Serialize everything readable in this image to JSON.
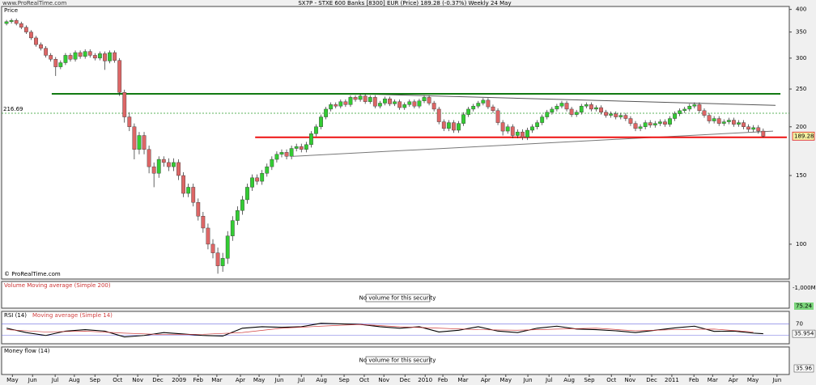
{
  "site": "www.ProRealTime.com",
  "price_label": "Price",
  "copyright": "© ProRealTime.com",
  "volume_panel": {
    "title": "Volume Moving average (Simple 200)",
    "message": "No volume for this security",
    "axis_label": "-1,000M",
    "value_label": "75.24"
  },
  "money_flow_panel": {
    "title": "Money flow (14)",
    "message": "No volume for this security",
    "value_label": "35.96"
  },
  "chart_data": [
    {
      "type": "candlestick",
      "title": "SX7P - STXE 600 Banks [8300] EUR (Price)   189.28 (-0.37%)   Weekly 24 May",
      "x": [
        0,
        1,
        2,
        3,
        4,
        5,
        6,
        7,
        8,
        9,
        10,
        11,
        12,
        13,
        14,
        15,
        16,
        17,
        18,
        19,
        20,
        21,
        22,
        23,
        24,
        25,
        26,
        27,
        28,
        29,
        30,
        31,
        32,
        33,
        34,
        35,
        36,
        37,
        38,
        39,
        40,
        41,
        42,
        43,
        44,
        45,
        46,
        47,
        48,
        49,
        50,
        51,
        52,
        53,
        54,
        55,
        56,
        57,
        58,
        59,
        60,
        61,
        62,
        63,
        64,
        65,
        66,
        67,
        68,
        69,
        70,
        71,
        72,
        73,
        74,
        75,
        76,
        77,
        78,
        79,
        80,
        81,
        82,
        83,
        84,
        85,
        86,
        87,
        88,
        89,
        90,
        91,
        92,
        93,
        94,
        95,
        96,
        97,
        98,
        99,
        100,
        101,
        102,
        103,
        104,
        105,
        106,
        107,
        108,
        109,
        110,
        111,
        112,
        113,
        114,
        115,
        116,
        117,
        118,
        119,
        120,
        121,
        122,
        123,
        124,
        125,
        126,
        127,
        128,
        129,
        130,
        131,
        132,
        133,
        134,
        135,
        136,
        137,
        138,
        139,
        140,
        141,
        142,
        143,
        144,
        145,
        146,
        147,
        148,
        149,
        150,
        151,
        152,
        153,
        154
      ],
      "open": [
        368,
        372,
        375,
        368,
        360,
        350,
        338,
        325,
        318,
        305,
        298,
        285,
        292,
        305,
        298,
        310,
        303,
        312,
        305,
        300,
        308,
        295,
        310,
        296,
        245,
        212,
        200,
        175,
        190,
        175,
        158,
        152,
        165,
        162,
        158,
        162,
        150,
        135,
        140,
        128,
        118,
        110,
        100,
        95,
        88,
        92,
        105,
        115,
        122,
        130,
        140,
        148,
        145,
        152,
        158,
        165,
        170,
        172,
        168,
        176,
        178,
        175,
        180,
        192,
        200,
        212,
        222,
        228,
        226,
        232,
        228,
        238,
        235,
        240,
        232,
        238,
        226,
        230,
        236,
        229,
        232,
        224,
        228,
        232,
        226,
        233,
        238,
        230,
        222,
        206,
        198,
        205,
        196,
        204,
        215,
        222,
        226,
        230,
        234,
        225,
        220,
        205,
        195,
        200,
        190,
        194,
        188,
        196,
        200,
        205,
        212,
        218,
        222,
        226,
        230,
        222,
        215,
        218,
        226,
        228,
        222,
        224,
        218,
        214,
        216,
        212,
        214,
        210,
        204,
        198,
        200,
        205,
        202,
        204,
        206,
        203,
        210,
        216,
        220,
        222,
        226,
        228,
        220,
        214,
        207,
        210,
        204,
        206,
        208,
        203,
        205,
        200,
        197,
        199,
        195
      ],
      "high": [
        376,
        379,
        379,
        372,
        364,
        354,
        342,
        329,
        322,
        309,
        302,
        296,
        309,
        309,
        314,
        314,
        316,
        316,
        309,
        312,
        312,
        314,
        314,
        300,
        249,
        218,
        204,
        194,
        194,
        179,
        162,
        168,
        168,
        166,
        166,
        165,
        153,
        143,
        143,
        131,
        121,
        113,
        103,
        98,
        95,
        108,
        118,
        125,
        133,
        143,
        151,
        151,
        155,
        161,
        168,
        173,
        175,
        175,
        179,
        181,
        181,
        183,
        195,
        203,
        215,
        225,
        231,
        231,
        235,
        235,
        241,
        241,
        243,
        243,
        241,
        241,
        233,
        239,
        239,
        235,
        235,
        231,
        235,
        235,
        236,
        241,
        241,
        233,
        225,
        209,
        208,
        208,
        207,
        218,
        225,
        229,
        233,
        237,
        237,
        228,
        223,
        208,
        203,
        203,
        197,
        197,
        199,
        203,
        208,
        215,
        221,
        225,
        229,
        233,
        233,
        225,
        221,
        229,
        231,
        231,
        227,
        227,
        221,
        219,
        219,
        217,
        217,
        213,
        207,
        203,
        208,
        208,
        207,
        209,
        209,
        213,
        219,
        223,
        225,
        229,
        231,
        231,
        223,
        217,
        213,
        213,
        209,
        211,
        211,
        208,
        208,
        203,
        202,
        202,
        198
      ],
      "low": [
        364,
        368,
        364,
        356,
        346,
        334,
        321,
        314,
        301,
        294,
        270,
        281,
        288,
        294,
        294,
        299,
        299,
        301,
        296,
        296,
        280,
        291,
        292,
        240,
        205,
        195,
        165,
        170,
        170,
        152,
        140,
        148,
        158,
        154,
        154,
        146,
        132,
        132,
        125,
        115,
        107,
        97,
        92,
        84,
        85,
        89,
        102,
        112,
        119,
        127,
        137,
        142,
        142,
        149,
        155,
        162,
        167,
        165,
        165,
        173,
        172,
        172,
        177,
        189,
        197,
        209,
        219,
        223,
        223,
        225,
        225,
        232,
        232,
        229,
        229,
        223,
        223,
        227,
        226,
        226,
        221,
        221,
        225,
        223,
        223,
        230,
        227,
        219,
        203,
        195,
        195,
        193,
        193,
        201,
        212,
        219,
        223,
        227,
        222,
        217,
        202,
        190,
        192,
        187,
        187,
        185,
        185,
        193,
        197,
        202,
        209,
        215,
        219,
        223,
        219,
        212,
        212,
        215,
        223,
        219,
        219,
        215,
        211,
        211,
        209,
        209,
        207,
        201,
        195,
        195,
        197,
        199,
        199,
        201,
        200,
        200,
        207,
        213,
        217,
        219,
        223,
        217,
        211,
        204,
        204,
        201,
        201,
        203,
        200,
        200,
        197,
        194,
        194,
        192,
        188
      ],
      "close": [
        372,
        375,
        368,
        360,
        350,
        338,
        325,
        318,
        305,
        298,
        285,
        292,
        305,
        298,
        310,
        303,
        312,
        305,
        300,
        308,
        295,
        310,
        296,
        245,
        212,
        200,
        175,
        190,
        175,
        158,
        152,
        165,
        162,
        158,
        162,
        150,
        135,
        140,
        128,
        118,
        110,
        100,
        95,
        88,
        92,
        105,
        115,
        122,
        130,
        140,
        148,
        145,
        152,
        158,
        165,
        170,
        172,
        168,
        176,
        178,
        175,
        180,
        192,
        200,
        212,
        222,
        228,
        226,
        232,
        228,
        238,
        235,
        240,
        232,
        238,
        226,
        230,
        236,
        229,
        232,
        224,
        228,
        232,
        226,
        233,
        238,
        230,
        222,
        206,
        198,
        205,
        196,
        204,
        215,
        222,
        226,
        230,
        234,
        225,
        220,
        205,
        195,
        200,
        190,
        194,
        188,
        196,
        200,
        205,
        212,
        218,
        222,
        226,
        230,
        222,
        215,
        218,
        226,
        228,
        222,
        224,
        218,
        214,
        216,
        212,
        214,
        210,
        204,
        198,
        200,
        205,
        202,
        204,
        206,
        203,
        210,
        216,
        220,
        222,
        226,
        228,
        220,
        214,
        207,
        210,
        204,
        206,
        208,
        203,
        205,
        200,
        197,
        199,
        195,
        189.28
      ],
      "up_color": "#33cc33",
      "down_color": "#dd6666",
      "log_scale": true,
      "ylim": [
        81.4,
        407
      ],
      "yticks": [
        100,
        150,
        200,
        250,
        300,
        350,
        400
      ],
      "xlim": [
        -1,
        159.3
      ],
      "xticks": [
        {
          "value": 1.2,
          "label": "May"
        },
        {
          "value": 5.3,
          "label": "Jun"
        },
        {
          "value": 9.9,
          "label": "Jul"
        },
        {
          "value": 13.8,
          "label": "Aug"
        },
        {
          "value": 18,
          "label": "Sep"
        },
        {
          "value": 22.6,
          "label": "Oct"
        },
        {
          "value": 26.7,
          "label": "Nov"
        },
        {
          "value": 30.8,
          "label": "Dec"
        },
        {
          "value": 35.1,
          "label": "2009"
        },
        {
          "value": 39,
          "label": "Feb"
        },
        {
          "value": 42.8,
          "label": "Mar"
        },
        {
          "value": 47.6,
          "label": "Apr"
        },
        {
          "value": 51.4,
          "label": "May"
        },
        {
          "value": 55.5,
          "label": "Jun"
        },
        {
          "value": 60,
          "label": "Jul"
        },
        {
          "value": 64.1,
          "label": "Aug"
        },
        {
          "value": 68.7,
          "label": "Sep"
        },
        {
          "value": 72.8,
          "label": "Oct"
        },
        {
          "value": 76.8,
          "label": "Nov"
        },
        {
          "value": 81.1,
          "label": "Dec"
        },
        {
          "value": 85.2,
          "label": "2010"
        },
        {
          "value": 88.8,
          "label": "Feb"
        },
        {
          "value": 92.9,
          "label": "Mar"
        },
        {
          "value": 97.5,
          "label": "Apr"
        },
        {
          "value": 101.6,
          "label": "May"
        },
        {
          "value": 106.1,
          "label": "Jun"
        },
        {
          "value": 110.4,
          "label": "Jul"
        },
        {
          "value": 114.5,
          "label": "Aug"
        },
        {
          "value": 118.6,
          "label": "Sep"
        },
        {
          "value": 123.1,
          "label": "Oct"
        },
        {
          "value": 126.9,
          "label": "Nov"
        },
        {
          "value": 131.3,
          "label": "Dec"
        },
        {
          "value": 135.4,
          "label": "2011"
        },
        {
          "value": 139.9,
          "label": "Feb"
        },
        {
          "value": 143.7,
          "label": "Mar"
        },
        {
          "value": 147.9,
          "label": "Apr"
        },
        {
          "value": 151.9,
          "label": "May"
        },
        {
          "value": 156.8,
          "label": "Jun"
        }
      ],
      "levels": [
        {
          "value": 243,
          "x": [
            9.2,
            157.5
          ],
          "color": "#127a12"
        },
        {
          "value": 188,
          "x": [
            50.6,
            158.8
          ],
          "color": "#ee1111"
        }
      ],
      "trendlines": [
        {
          "x": [
            71.2,
            156.5
          ],
          "y": [
            243,
            227
          ],
          "color": "#555555"
        },
        {
          "x": [
            58.3,
            156
          ],
          "y": [
            168,
            195
          ],
          "color": "#777777"
        }
      ],
      "reference": 216.69,
      "reference_color": "#2a9a2a"
    },
    {
      "type": "line",
      "ylim": [
        1.4,
        112.9
      ],
      "yticks": [
        30,
        70
      ],
      "series": [
        {
          "name": "RSI (14)",
          "color": "#000000",
          "x": [
            0,
            4,
            8,
            12,
            16,
            20,
            24,
            28,
            32,
            36,
            40,
            44,
            48,
            52,
            56,
            60,
            64,
            68,
            72,
            76,
            80,
            84,
            88,
            92,
            96,
            100,
            104,
            108,
            112,
            116,
            120,
            124,
            128,
            132,
            136,
            140,
            144,
            148,
            152,
            154
          ],
          "values": [
            55,
            40,
            30,
            45,
            50,
            45,
            25,
            30,
            40,
            35,
            30,
            28,
            55,
            60,
            58,
            60,
            72,
            70,
            68,
            60,
            55,
            60,
            42,
            48,
            60,
            45,
            40,
            55,
            62,
            52,
            50,
            46,
            40,
            48,
            56,
            62,
            44,
            45,
            38,
            35.954
          ]
        },
        {
          "name": "Moving average (Simple 14)",
          "color": "#d04040",
          "x": [
            0,
            8,
            16,
            24,
            32,
            40,
            48,
            56,
            64,
            72,
            80,
            88,
            96,
            104,
            112,
            120,
            128,
            136,
            144,
            152
          ],
          "values": [
            50,
            42,
            45,
            38,
            33,
            34,
            40,
            55,
            62,
            68,
            60,
            55,
            50,
            48,
            52,
            55,
            46,
            50,
            52,
            42
          ]
        }
      ]
    }
  ]
}
